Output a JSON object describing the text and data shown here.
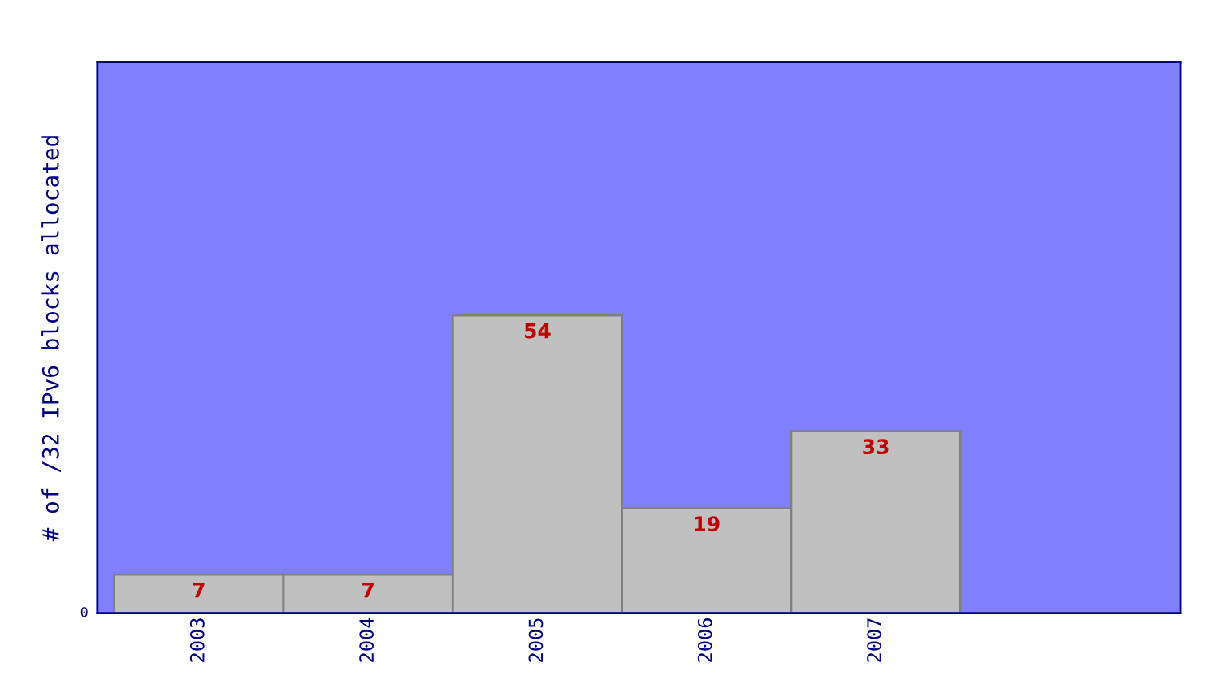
{
  "chart_data": {
    "type": "bar",
    "ylabel": "# of /32 IPv6 blocks allocated",
    "categories": [
      "2003",
      "2004",
      "2005",
      "2006",
      "2007"
    ],
    "values": [
      7,
      7,
      54,
      19,
      33
    ],
    "color": "#c0c0c0",
    "data_labels": true,
    "annotations": [
      "0"
    ],
    "grid": false,
    "legend": false
  }
}
